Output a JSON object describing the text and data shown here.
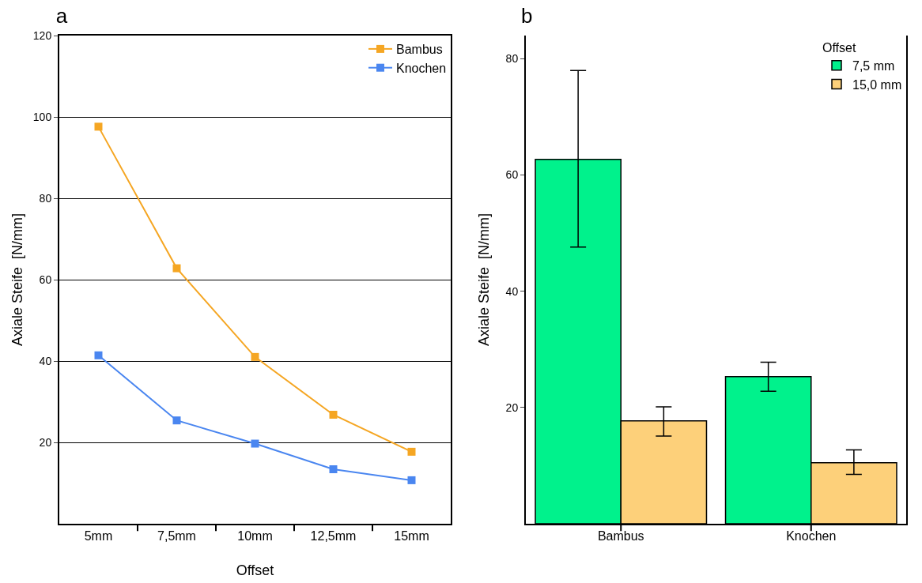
{
  "chart_data": [
    {
      "type": "line",
      "title": "a",
      "xlabel": "Offset",
      "ylabel": "Axiale Steife  [N/mm]",
      "categories": [
        "5mm",
        "7,5mm",
        "10mm",
        "12,5mm",
        "15mm"
      ],
      "series": [
        {
          "name": "Bambus",
          "color": "#f5a623",
          "values": [
            97.6,
            62.8,
            41,
            26.8,
            17.7
          ]
        },
        {
          "name": "Knochen",
          "color": "#4a86f0",
          "values": [
            41.4,
            25.4,
            19.7,
            13.4,
            10.7
          ]
        }
      ],
      "ylim": [
        0,
        120
      ],
      "yticks": [
        20,
        40,
        60,
        80,
        100,
        120
      ],
      "grid": "y",
      "legend": "top right",
      "marker": "square",
      "line_style": "solid"
    },
    {
      "type": "bar",
      "title": "b",
      "ylabel": "Axiale Steife  [N/mm]",
      "legend_title": "Offset",
      "categories": [
        "Bambus",
        "Knochen"
      ],
      "series": [
        {
          "name": "7,5 mm",
          "color": "#00f28c",
          "values": [
            62.7,
            25.3
          ],
          "errors": [
            [
              47.6,
              78
            ],
            [
              22.8,
              27.8
            ]
          ]
        },
        {
          "name": "15,0 mm",
          "color": "#fdd07a",
          "values": [
            17.7,
            10.5
          ],
          "errors": [
            [
              15.1,
              20.1
            ],
            [
              8.5,
              12.7
            ]
          ]
        }
      ],
      "ylim": [
        0,
        84
      ],
      "yticks": [
        20,
        40,
        60,
        80
      ],
      "grid": false,
      "legend": "top right"
    }
  ]
}
